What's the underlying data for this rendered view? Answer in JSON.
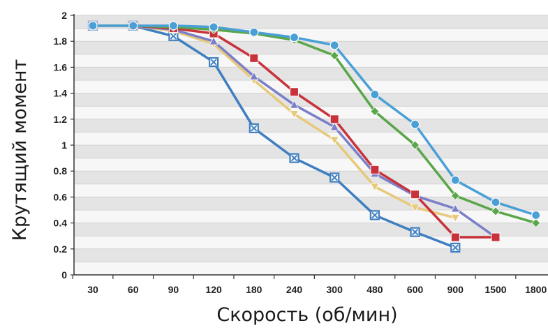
{
  "chart_data": {
    "type": "line",
    "title": "",
    "xlabel": "Скорость (об/мин)",
    "ylabel": "Крутящий момент",
    "categories": [
      "30",
      "60",
      "90",
      "120",
      "180",
      "240",
      "300",
      "480",
      "600",
      "900",
      "1500",
      "1800"
    ],
    "y_ticks": [
      "0",
      "0.2",
      "0.4",
      "0.6",
      "0.8",
      "1",
      "1.2",
      "1.4",
      "1.6",
      "1.8",
      "2"
    ],
    "ylim": [
      0,
      2
    ],
    "grid": "horizontal bands",
    "legend": "none",
    "series": [
      {
        "color": "#3f7fc0",
        "marker": "x-square",
        "values": [
          1.92,
          1.92,
          1.84,
          1.64,
          1.13,
          0.9,
          0.75,
          0.46,
          0.33,
          0.21,
          null,
          null
        ]
      },
      {
        "color": "#e6c97a",
        "marker": "triangle-down",
        "values": [
          1.92,
          1.92,
          1.88,
          1.78,
          1.5,
          1.24,
          1.04,
          0.68,
          0.52,
          0.44,
          null,
          null
        ]
      },
      {
        "color": "#7b7fc8",
        "marker": "triangle",
        "values": [
          1.92,
          1.92,
          1.89,
          1.8,
          1.53,
          1.31,
          1.14,
          0.78,
          0.61,
          0.51,
          0.29,
          null
        ]
      },
      {
        "color": "#c8323a",
        "marker": "square",
        "values": [
          1.92,
          1.92,
          1.9,
          1.86,
          1.67,
          1.41,
          1.2,
          0.81,
          0.62,
          0.29,
          0.29,
          null
        ]
      },
      {
        "color": "#5aa64a",
        "marker": "diamond",
        "values": [
          1.92,
          1.92,
          1.91,
          1.89,
          1.86,
          1.81,
          1.69,
          1.26,
          1.0,
          0.61,
          0.49,
          0.4
        ]
      },
      {
        "color": "#4aa0d6",
        "marker": "circle",
        "values": [
          1.92,
          1.92,
          1.92,
          1.91,
          1.87,
          1.83,
          1.77,
          1.39,
          1.16,
          0.73,
          0.56,
          0.46
        ]
      }
    ]
  }
}
